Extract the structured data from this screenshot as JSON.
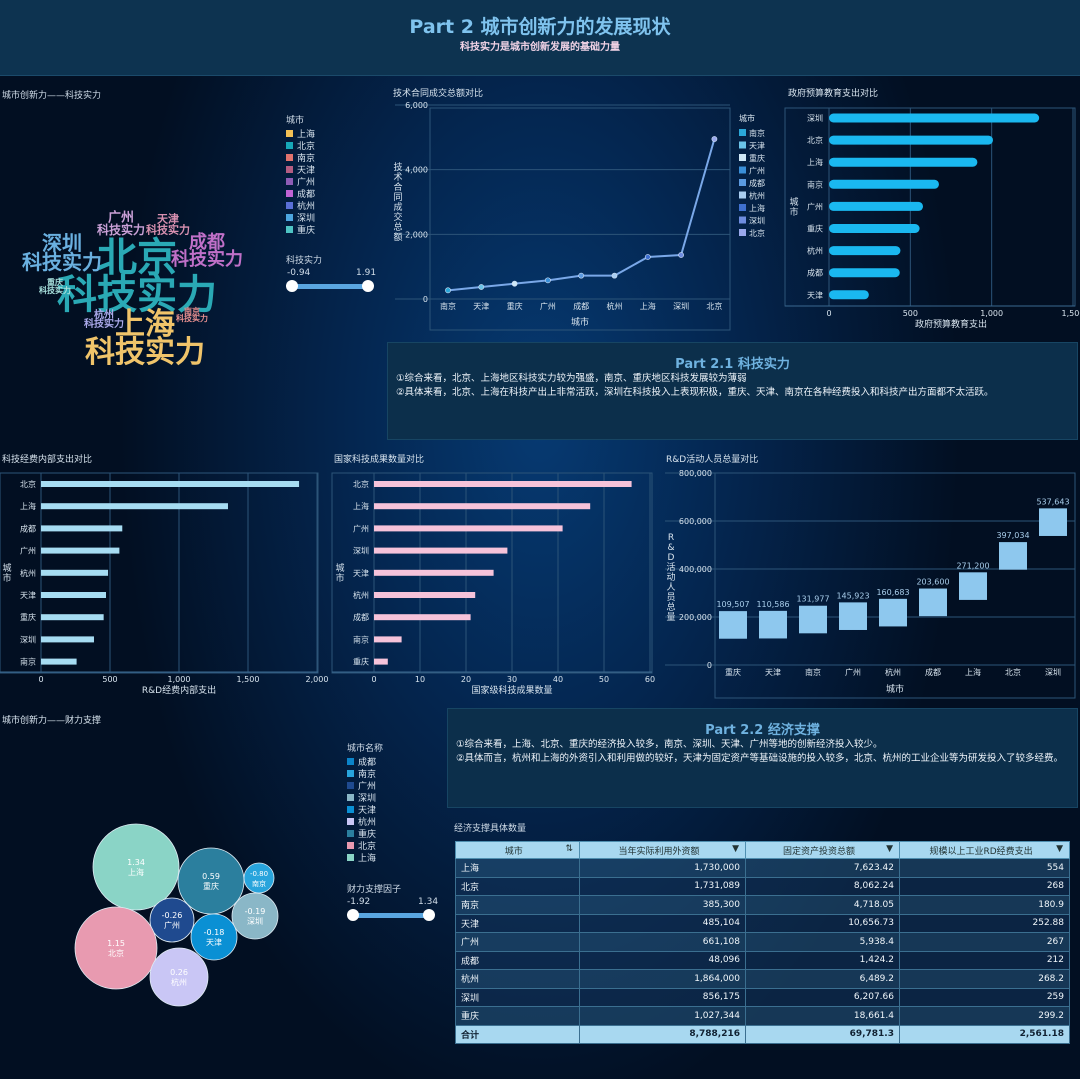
{
  "header": {
    "title": "Part 2  城市创新力的发展现状",
    "subtitle": "科技实力是城市创新发展的基础力量"
  },
  "wordcloud": {
    "title": "城市创新力——科技实力",
    "legend_title": "城市",
    "word_suffix": "科技实力",
    "legend": [
      {
        "name": "上海",
        "color": "#f2c055"
      },
      {
        "name": "北京",
        "color": "#17a8b8"
      },
      {
        "name": "南京",
        "color": "#e0736e"
      },
      {
        "name": "天津",
        "color": "#b55d82"
      },
      {
        "name": "广州",
        "color": "#8e5db5"
      },
      {
        "name": "成都",
        "color": "#c063d4"
      },
      {
        "name": "杭州",
        "color": "#5a6fd6"
      },
      {
        "name": "深圳",
        "color": "#4da6e0"
      },
      {
        "name": "重庆",
        "color": "#4ec4c4"
      }
    ],
    "words": [
      {
        "city": "北京",
        "color": "#2aa9b5"
      },
      {
        "city": "上海",
        "color": "#f0c46a"
      },
      {
        "city": "深圳",
        "color": "#6ab0e0"
      },
      {
        "city": "成都",
        "color": "#c070c8"
      },
      {
        "city": "广州",
        "color": "#c9a0d6"
      },
      {
        "city": "天津",
        "color": "#d890b0"
      },
      {
        "city": "重庆",
        "color": "#a8e0dc"
      },
      {
        "city": "杭州",
        "color": "#a9a8e8"
      },
      {
        "city": "南京",
        "color": "#e89090"
      }
    ],
    "range_label": "科技实力",
    "range_min": "-0.94",
    "range_max": "1.91"
  },
  "chart_data": [
    {
      "type": "line",
      "title": "技术合同成交总额对比",
      "xlabel": "城市",
      "ylabel": "技术合同成交总额",
      "ylim": [
        0,
        6000
      ],
      "yticks": [
        "0",
        "2,000",
        "4,000",
        "6,000"
      ],
      "categories": [
        "南京",
        "天津",
        "重庆",
        "广州",
        "成都",
        "杭州",
        "上海",
        "深圳",
        "北京"
      ],
      "values": [
        268,
        371,
        474,
        577,
        722,
        722,
        1299,
        1361,
        4948
      ],
      "legend_title": "城市",
      "legend_colors": [
        "#2aa7d8",
        "#6ac3e8",
        "#cfe8f7",
        "#3a8fd8",
        "#5b9ae0",
        "#a9cdf0",
        "#3f70d0",
        "#6f8de0",
        "#9aa8ec"
      ],
      "line_color": "#7aa8e8"
    },
    {
      "type": "bar",
      "orientation": "horizontal",
      "title": "政府预算教育支出对比",
      "xlabel": "政府预算教育支出",
      "ylabel": "城市",
      "xlim": [
        0,
        1500
      ],
      "xticks": [
        "0",
        "500",
        "1,000",
        "1,500"
      ],
      "categories": [
        "深圳",
        "北京",
        "上海",
        "南京",
        "广州",
        "重庆",
        "杭州",
        "成都",
        "天津"
      ],
      "values": [
        1292,
        1008,
        912,
        676,
        578,
        557,
        439,
        435,
        245
      ],
      "color": "#1ab8f0"
    },
    {
      "type": "bar",
      "orientation": "horizontal",
      "title": "科技经费内部支出对比",
      "xlabel": "R&D经费内部支出",
      "ylabel": "城市",
      "xlim": [
        0,
        2000
      ],
      "xticks": [
        "0",
        "500",
        "1,000",
        "1,500",
        "2,000"
      ],
      "categories": [
        "北京",
        "上海",
        "成都",
        "广州",
        "杭州",
        "天津",
        "重庆",
        "深圳",
        "南京"
      ],
      "values": [
        1870,
        1355,
        589,
        568,
        486,
        471,
        454,
        384,
        258
      ],
      "color": "#a6dcf2"
    },
    {
      "type": "bar",
      "orientation": "horizontal",
      "title": "国家科技成果数量对比",
      "xlabel": "国家级科技成果数量",
      "ylabel": "城市",
      "xlim": [
        0,
        60
      ],
      "xticks": [
        "0",
        "10",
        "20",
        "30",
        "40",
        "50",
        "60"
      ],
      "categories": [
        "北京",
        "上海",
        "广州",
        "深圳",
        "天津",
        "杭州",
        "成都",
        "南京",
        "重庆"
      ],
      "values": [
        56,
        47,
        41,
        29,
        26,
        22,
        21,
        6,
        3
      ],
      "color": "#f6c3da"
    },
    {
      "type": "bar",
      "title": "R&D活动人员总量对比",
      "xlabel": "城市",
      "ylabel": "R&D活动人员总量",
      "ylim": [
        0,
        800000
      ],
      "yticks": [
        "0",
        "200,000",
        "400,000",
        "600,000",
        "800,000"
      ],
      "categories": [
        "重庆",
        "天津",
        "南京",
        "广州",
        "杭州",
        "成都",
        "上海",
        "北京",
        "深圳"
      ],
      "values": [
        109507,
        110586,
        131977,
        145923,
        160683,
        203600,
        271200,
        397034,
        537643
      ],
      "labels": [
        "109,507",
        "110,586",
        "131,977",
        "145,923",
        "160,683",
        "203,600",
        "271,200",
        "397,034",
        "537,643"
      ],
      "color": "#8ec8ee"
    },
    {
      "type": "scatter",
      "subtype": "bubble",
      "title": "城市创新力——财力支撑",
      "legend_title": "城市名称",
      "legend": [
        {
          "name": "成都",
          "color": "#0b84c9"
        },
        {
          "name": "南京",
          "color": "#28a4dc"
        },
        {
          "name": "广州",
          "color": "#1f4a8f"
        },
        {
          "name": "深圳",
          "color": "#8ab7c7"
        },
        {
          "name": "天津",
          "color": "#0a90d4"
        },
        {
          "name": "杭州",
          "color": "#c9c6f5"
        },
        {
          "name": "重庆",
          "color": "#2b7f9e"
        },
        {
          "name": "北京",
          "color": "#e89ab0"
        },
        {
          "name": "上海",
          "color": "#8ad4c6"
        }
      ],
      "points": [
        {
          "city": "上海",
          "value": "1.34"
        },
        {
          "city": "重庆",
          "value": "0.59"
        },
        {
          "city": "南京",
          "value": "-0.80"
        },
        {
          "city": "深圳",
          "value": "-0.19"
        },
        {
          "city": "广州",
          "value": "-0.26"
        },
        {
          "city": "天津",
          "value": "-0.18"
        },
        {
          "city": "北京",
          "value": "1.15"
        },
        {
          "city": "杭州",
          "value": "0.26"
        }
      ],
      "range_label": "财力支撑因子",
      "range_min": "-1.92",
      "range_max": "1.34"
    }
  ],
  "part21": {
    "title": "Part 2.1  科技实力",
    "lines": [
      "①综合来看，北京、上海地区科技实力较为强盛，南京、重庆地区科技发展较为薄弱",
      "②具体来看，北京、上海在科技产出上非常活跃，深圳在科技投入上表现积极，重庆、天津、南京在各种经费投入和科技产出方面都不太活跃。"
    ]
  },
  "part22": {
    "title": "Part 2.2  经济支撑",
    "lines": [
      "①综合来看，上海、北京、重庆的经济投入较多，南京、深圳、天津、广州等地的创新经济投入较少。",
      "②具体而言，杭州和上海的外资引入和利用做的较好，天津为固定资产等基础设施的投入较多，北京、杭州的工业企业等为研发投入了较多经费。"
    ]
  },
  "table": {
    "title": "经济支撑具体数量",
    "columns": [
      "城市",
      "当年实际利用外资额",
      "固定资产投资总额",
      "规模以上工业RD经费支出"
    ],
    "rows": [
      [
        "上海",
        "1,730,000",
        "7,623.42",
        "554"
      ],
      [
        "北京",
        "1,731,089",
        "8,062.24",
        "268"
      ],
      [
        "南京",
        "385,300",
        "4,718.05",
        "180.9"
      ],
      [
        "天津",
        "485,104",
        "10,656.73",
        "252.88"
      ],
      [
        "广州",
        "661,108",
        "5,938.4",
        "267"
      ],
      [
        "成都",
        "48,096",
        "1,424.2",
        "212"
      ],
      [
        "杭州",
        "1,864,000",
        "6,489.2",
        "268.2"
      ],
      [
        "深圳",
        "856,175",
        "6,207.66",
        "259"
      ],
      [
        "重庆",
        "1,027,344",
        "18,661.4",
        "299.2"
      ]
    ],
    "total": [
      "合计",
      "8,788,216",
      "69,781.3",
      "2,561.18"
    ]
  }
}
